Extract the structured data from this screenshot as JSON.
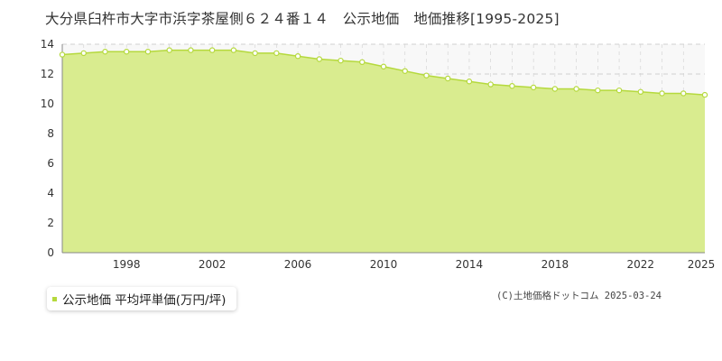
{
  "title": "大分県臼杵市大字市浜字茶屋側６２４番１４　公示地価　地価推移[1995-2025]",
  "legend": {
    "label": "公示地価 平均坪単価(万円/坪)"
  },
  "copyright": "(C)土地価格ドットコム 2025-03-24",
  "colors": {
    "fill": "#d9ec8f",
    "line": "#b5d93d",
    "marker_fill": "#ffffff",
    "marker_stroke": "#b5d93d",
    "grid": "#d0d0d0",
    "plot_bg": "#f8f8f8",
    "legend_marker": "#b5d93d"
  },
  "chart_data": {
    "type": "area",
    "title": "大分県臼杵市大字市浜字茶屋側６２４番１４　公示地価　地価推移[1995-2025]",
    "xlabel": "",
    "ylabel": "",
    "xlim": [
      1995,
      2025
    ],
    "ylim": [
      0,
      14
    ],
    "y_ticks": [
      0,
      2,
      4,
      6,
      8,
      10,
      12,
      14
    ],
    "x_ticks": [
      1998,
      2002,
      2006,
      2010,
      2014,
      2018,
      2022,
      2025
    ],
    "grid": true,
    "legend_position": "bottom-left",
    "series": [
      {
        "name": "公示地価 平均坪単価(万円/坪)",
        "x": [
          1995,
          1996,
          1997,
          1998,
          1999,
          2000,
          2001,
          2002,
          2003,
          2004,
          2005,
          2006,
          2007,
          2008,
          2009,
          2010,
          2011,
          2012,
          2013,
          2014,
          2015,
          2016,
          2017,
          2018,
          2019,
          2020,
          2021,
          2022,
          2023,
          2024,
          2025
        ],
        "values": [
          13.3,
          13.4,
          13.5,
          13.5,
          13.5,
          13.6,
          13.6,
          13.6,
          13.6,
          13.4,
          13.4,
          13.2,
          13.0,
          12.9,
          12.8,
          12.5,
          12.2,
          11.9,
          11.7,
          11.5,
          11.3,
          11.2,
          11.1,
          11.0,
          11.0,
          10.9,
          10.9,
          10.8,
          10.7,
          10.7,
          10.6
        ]
      }
    ]
  }
}
